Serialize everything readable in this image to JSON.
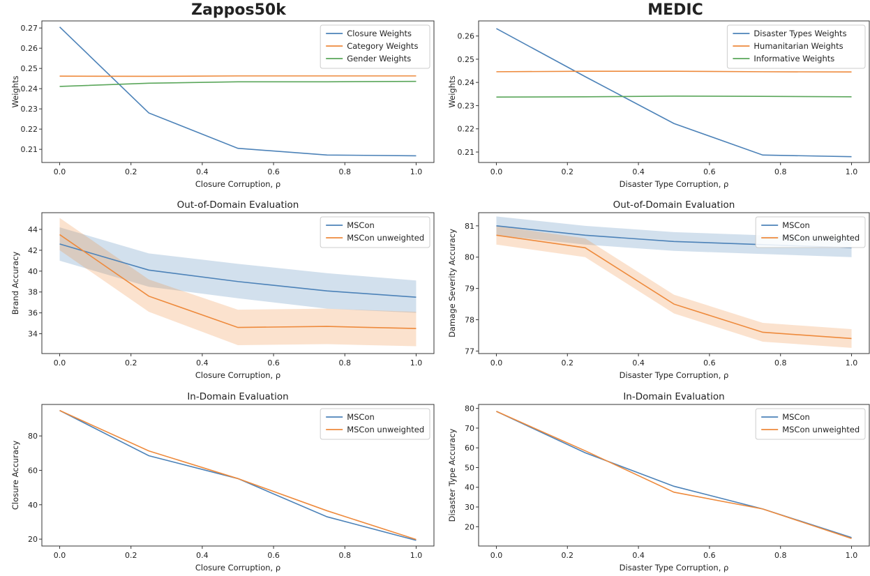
{
  "column_titles": [
    "Zappos50k",
    "MEDIC"
  ],
  "colors": {
    "blue": "#4c82b8",
    "orange": "#ee8a3c",
    "green": "#5aa65a",
    "axis": "#333333"
  },
  "chart_data": [
    {
      "type": "line",
      "title": "",
      "xlabel": "Closure Corruption, ρ",
      "ylabel": "Weights",
      "xlim": [
        -0.05,
        1.05
      ],
      "ylim": [
        0.2035,
        0.2735
      ],
      "xticks": [
        0.0,
        0.2,
        0.4,
        0.6,
        0.8,
        1.0
      ],
      "xtick_labels": [
        "0.0",
        "0.2",
        "0.4",
        "0.6",
        "0.8",
        "1.0"
      ],
      "yticks": [
        0.21,
        0.22,
        0.23,
        0.24,
        0.25,
        0.26,
        0.27
      ],
      "ytick_labels": [
        "0.21",
        "0.22",
        "0.23",
        "0.24",
        "0.25",
        "0.26",
        "0.27"
      ],
      "legend": "top-right",
      "x": [
        0,
        0.25,
        0.5,
        0.75,
        1.0
      ],
      "series": [
        {
          "name": "Closure Weights",
          "color": "blue",
          "values": [
            0.2705,
            0.228,
            0.2105,
            0.2072,
            0.2068
          ]
        },
        {
          "name": "Category Weights",
          "color": "orange",
          "values": [
            0.2462,
            0.2461,
            0.2463,
            0.2463,
            0.2463
          ]
        },
        {
          "name": "Gender Weights",
          "color": "green",
          "values": [
            0.2411,
            0.2427,
            0.2434,
            0.2434,
            0.2436
          ]
        }
      ]
    },
    {
      "type": "line",
      "title": "",
      "xlabel": "Disaster Type Corruption, ρ",
      "ylabel": "Weights",
      "xlim": [
        -0.05,
        1.05
      ],
      "ylim": [
        0.2055,
        0.2665
      ],
      "xticks": [
        0.0,
        0.2,
        0.4,
        0.6,
        0.8,
        1.0
      ],
      "xtick_labels": [
        "0.0",
        "0.2",
        "0.4",
        "0.6",
        "0.8",
        "1.0"
      ],
      "yticks": [
        0.21,
        0.22,
        0.23,
        0.24,
        0.25,
        0.26
      ],
      "ytick_labels": [
        "0.21",
        "0.22",
        "0.23",
        "0.24",
        "0.25",
        "0.26"
      ],
      "legend": "top-right",
      "x": [
        0,
        0.25,
        0.5,
        0.75,
        1.0
      ],
      "series": [
        {
          "name": "Disaster Types Weights",
          "color": "blue",
          "values": [
            0.2632,
            0.2425,
            0.2223,
            0.2087,
            0.208
          ]
        },
        {
          "name": "Humanitarian Weights",
          "color": "orange",
          "values": [
            0.2446,
            0.2448,
            0.2448,
            0.2446,
            0.2445
          ]
        },
        {
          "name": "Informative Weights",
          "color": "green",
          "values": [
            0.2337,
            0.2338,
            0.2341,
            0.234,
            0.2338
          ]
        }
      ]
    },
    {
      "type": "line",
      "title": "Out-of-Domain Evaluation",
      "xlabel": "Closure Corruption, ρ",
      "ylabel": "Brand Accuracy",
      "xlim": [
        -0.05,
        1.05
      ],
      "ylim": [
        32.1,
        45.6
      ],
      "xticks": [
        0.0,
        0.2,
        0.4,
        0.6,
        0.8,
        1.0
      ],
      "xtick_labels": [
        "0.0",
        "0.2",
        "0.4",
        "0.6",
        "0.8",
        "1.0"
      ],
      "yticks": [
        34,
        36,
        38,
        40,
        42,
        44
      ],
      "ytick_labels": [
        "34",
        "36",
        "38",
        "40",
        "42",
        "44"
      ],
      "legend": "top-right",
      "x": [
        0,
        0.25,
        0.5,
        0.75,
        1.0
      ],
      "series": [
        {
          "name": "MSCon",
          "color": "blue",
          "values": [
            42.6,
            40.1,
            39.0,
            38.1,
            37.5
          ],
          "lower": [
            41.0,
            38.5,
            37.4,
            36.4,
            36.0
          ],
          "upper": [
            44.2,
            41.7,
            40.7,
            39.8,
            39.1
          ]
        },
        {
          "name": "MSCon unweighted",
          "color": "orange",
          "values": [
            43.5,
            37.6,
            34.6,
            34.7,
            34.5
          ],
          "lower": [
            42.0,
            36.1,
            32.9,
            33.0,
            32.8
          ],
          "upper": [
            45.1,
            39.2,
            36.3,
            36.4,
            36.1
          ]
        }
      ]
    },
    {
      "type": "line",
      "title": "Out-of-Domain Evaluation",
      "xlabel": "Disaster Type Corruption, ρ",
      "ylabel": "Damage Severity Accuracy",
      "xlim": [
        -0.05,
        1.05
      ],
      "ylim": [
        76.92,
        81.42
      ],
      "xticks": [
        0.0,
        0.2,
        0.4,
        0.6,
        0.8,
        1.0
      ],
      "xtick_labels": [
        "0.0",
        "0.2",
        "0.4",
        "0.6",
        "0.8",
        "1.0"
      ],
      "yticks": [
        77,
        78,
        79,
        80,
        81
      ],
      "ytick_labels": [
        "77",
        "78",
        "79",
        "80",
        "81"
      ],
      "legend": "top-right",
      "x": [
        0,
        0.25,
        0.5,
        0.75,
        1.0
      ],
      "series": [
        {
          "name": "MSCon",
          "color": "blue",
          "values": [
            81.0,
            80.7,
            80.5,
            80.4,
            80.3
          ],
          "lower": [
            80.7,
            80.4,
            80.2,
            80.1,
            80.0
          ],
          "upper": [
            81.3,
            81.0,
            80.8,
            80.7,
            80.6
          ]
        },
        {
          "name": "MSCon unweighted",
          "color": "orange",
          "values": [
            80.7,
            80.3,
            78.5,
            77.6,
            77.4
          ],
          "lower": [
            80.4,
            80.0,
            78.2,
            77.3,
            77.1
          ],
          "upper": [
            81.0,
            80.6,
            78.8,
            77.9,
            77.7
          ]
        }
      ]
    },
    {
      "type": "line",
      "title": "In-Domain Evaluation",
      "xlabel": "Closure Corruption, ρ",
      "ylabel": "Closure Accuracy",
      "xlim": [
        -0.05,
        1.05
      ],
      "ylim": [
        16.0,
        98.3
      ],
      "xticks": [
        0.0,
        0.2,
        0.4,
        0.6,
        0.8,
        1.0
      ],
      "xtick_labels": [
        "0.0",
        "0.2",
        "0.4",
        "0.6",
        "0.8",
        "1.0"
      ],
      "yticks": [
        20,
        40,
        60,
        80
      ],
      "ytick_labels": [
        "20",
        "40",
        "60",
        "80"
      ],
      "legend": "top-right",
      "x": [
        0,
        0.25,
        0.5,
        0.75,
        1.0
      ],
      "series": [
        {
          "name": "MSCon",
          "color": "blue",
          "values": [
            94.8,
            68.5,
            55.2,
            33.0,
            19.3
          ]
        },
        {
          "name": "MSCon unweighted",
          "color": "orange",
          "values": [
            94.8,
            71.3,
            55.2,
            36.5,
            19.8
          ]
        }
      ]
    },
    {
      "type": "line",
      "title": "In-Domain Evaluation",
      "xlabel": "Disaster Type Corruption, ρ",
      "ylabel": "Disaster Type Accuracy",
      "xlim": [
        -0.05,
        1.05
      ],
      "ylim": [
        10.2,
        82.0
      ],
      "xticks": [
        0.0,
        0.2,
        0.4,
        0.6,
        0.8,
        1.0
      ],
      "xtick_labels": [
        "0.0",
        "0.2",
        "0.4",
        "0.6",
        "0.8",
        "1.0"
      ],
      "yticks": [
        20,
        30,
        40,
        50,
        60,
        70,
        80
      ],
      "ytick_labels": [
        "20",
        "30",
        "40",
        "50",
        "60",
        "70",
        "80"
      ],
      "legend": "top-right",
      "x": [
        0,
        0.25,
        0.5,
        0.75,
        1.0
      ],
      "series": [
        {
          "name": "MSCon",
          "color": "blue",
          "values": [
            78.5,
            57.5,
            40.5,
            29.0,
            14.5
          ]
        },
        {
          "name": "MSCon unweighted",
          "color": "orange",
          "values": [
            78.5,
            58.5,
            37.5,
            29.0,
            14.0
          ]
        }
      ]
    }
  ]
}
